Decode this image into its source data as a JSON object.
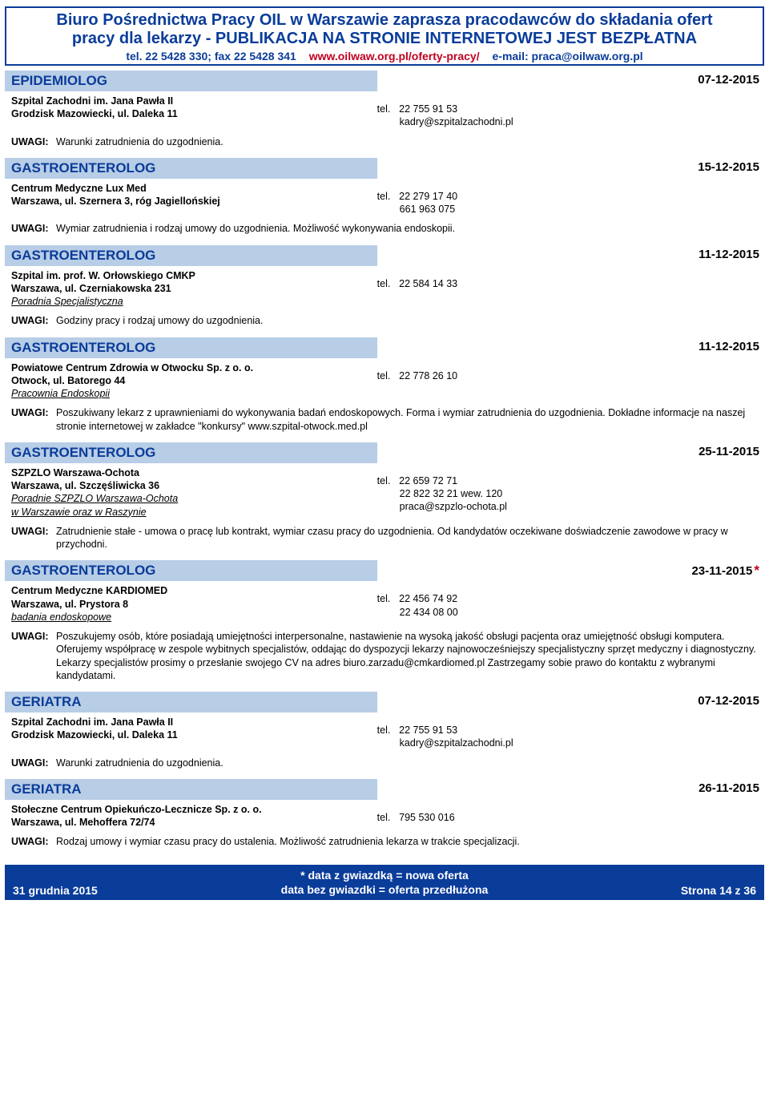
{
  "header": {
    "title_line1": "Biuro Pośrednictwa Pracy OIL w Warszawie zaprasza pracodawców do składania ofert",
    "title_line2": "pracy dla lekarzy - PUBLIKACJA NA STRONIE INTERNETOWEJ JEST BEZPŁATNA",
    "phone": "tel. 22 5428 330; fax 22 5428 341",
    "url": "www.oilwaw.org.pl/oferty-pracy/",
    "email": "e-mail: praca@oilwaw.org.pl"
  },
  "listings": [
    {
      "title": "EPIDEMIOLOG",
      "date": "07-12-2015",
      "star": false,
      "employer": "Szpital Zachodni im. Jana Pawła II",
      "address": "Grodzisk Mazowiecki, ul. Daleka 11",
      "dept": "",
      "dept2": "",
      "tel": "22 755 91 53",
      "contact_lines": [
        "kadry@szpitalzachodni.pl"
      ],
      "remarks": "Warunki zatrudnienia do uzgodnienia."
    },
    {
      "title": "GASTROENTEROLOG",
      "date": "15-12-2015",
      "star": false,
      "employer": "Centrum Medyczne Lux Med",
      "address": "Warszawa, ul. Szernera 3, róg Jagiellońskiej",
      "dept": "",
      "dept2": "",
      "tel": "22 279 17 40",
      "contact_lines": [
        "661 963 075"
      ],
      "remarks": "Wymiar zatrudnienia i rodzaj umowy do uzgodnienia. Możliwość wykonywania endoskopii."
    },
    {
      "title": "GASTROENTEROLOG",
      "date": "11-12-2015",
      "star": false,
      "employer": "Szpital im. prof. W. Orłowskiego CMKP",
      "address": "Warszawa, ul. Czerniakowska 231",
      "dept": "Poradnia Specjalistyczna",
      "dept2": "",
      "tel": "22 584 14 33",
      "contact_lines": [],
      "remarks": "Godziny pracy i rodzaj umowy do uzgodnienia."
    },
    {
      "title": "GASTROENTEROLOG",
      "date": "11-12-2015",
      "star": false,
      "employer": "Powiatowe Centrum Zdrowia w Otwocku Sp. z o. o.",
      "address": "Otwock, ul. Batorego 44",
      "dept": "Pracownia Endoskopii",
      "dept2": "",
      "tel": "22 778 26 10",
      "contact_lines": [],
      "remarks": "Poszukiwany lekarz z uprawnieniami do wykonywania  badań endoskopowych. Forma i wymiar zatrudnienia do uzgodnienia. Dokładne informacje na naszej stronie internetowej w zakładce \"konkursy\"  www.szpital-otwock.med.pl"
    },
    {
      "title": "GASTROENTEROLOG",
      "date": "25-11-2015",
      "star": false,
      "employer": "SZPZLO Warszawa-Ochota",
      "address": "Warszawa, ul. Szczęśliwicka 36",
      "dept": "Poradnie SZPZLO Warszawa-Ochota",
      "dept2": "w Warszawie oraz w Raszynie",
      "tel": "22 659 72 71",
      "contact_lines": [
        "22 822 32 21 wew. 120",
        "praca@szpzlo-ochota.pl"
      ],
      "remarks": "Zatrudnienie stałe - umowa o pracę lub kontrakt, wymiar czasu pracy do uzgodnienia. Od kandydatów oczekiwane doświadczenie zawodowe w pracy w przychodni."
    },
    {
      "title": "GASTROENTEROLOG",
      "date": "23-11-2015",
      "star": true,
      "employer": "Centrum Medyczne KARDIOMED",
      "address": "Warszawa, ul. Prystora 8",
      "dept": "badania endoskopowe",
      "dept2": "",
      "tel": "22 456 74 92",
      "contact_lines": [
        "22 434 08 00"
      ],
      "remarks": "Poszukujemy osób, które posiadają umiejętności interpersonalne, nastawienie na wysoką jakość obsługi pacjenta oraz umiejętność obsługi komputera. Oferujemy współpracę w zespole wybitnych specjalistów, oddając do dyspozycji lekarzy najnowocześniejszy specjalistyczny sprzęt medyczny i diagnostyczny. Lekarzy specjalistów prosimy o przesłanie swojego CV na adres biuro.zarzadu@cmkardiomed.pl  Zastrzegamy sobie prawo do kontaktu z wybranymi kandydatami."
    },
    {
      "title": "GERIATRA",
      "date": "07-12-2015",
      "star": false,
      "employer": "Szpital Zachodni im. Jana Pawła II",
      "address": "Grodzisk Mazowiecki, ul. Daleka 11",
      "dept": "",
      "dept2": "",
      "tel": "22 755 91 53",
      "contact_lines": [
        "kadry@szpitalzachodni.pl"
      ],
      "remarks": "Warunki zatrudnienia do uzgodnienia."
    },
    {
      "title": "GERIATRA",
      "date": "26-11-2015",
      "star": false,
      "employer": "Stołeczne Centrum Opiekuńczo-Lecznicze Sp. z o. o.",
      "address": "Warszawa, ul. Mehoffera 72/74",
      "dept": "",
      "dept2": "",
      "tel": "795 530 016",
      "contact_lines": [],
      "remarks": "Rodzaj umowy i wymiar czasu pracy do ustalenia. Możliwość zatrudnienia lekarza w trakcie specjalizacji."
    }
  ],
  "labels": {
    "tel": "tel.",
    "uwagi": "UWAGI:"
  },
  "footer": {
    "left": "31 grudnia 2015",
    "mid1": "* data z gwiazdką = nowa oferta",
    "mid2": "data bez gwiazdki = oferta przedłużona",
    "right": "Strona 14 z 36"
  },
  "colors": {
    "brand_blue": "#0a3c9a",
    "panel_blue": "#b8cde6",
    "accent_red": "#c00020",
    "background": "#ffffff"
  }
}
